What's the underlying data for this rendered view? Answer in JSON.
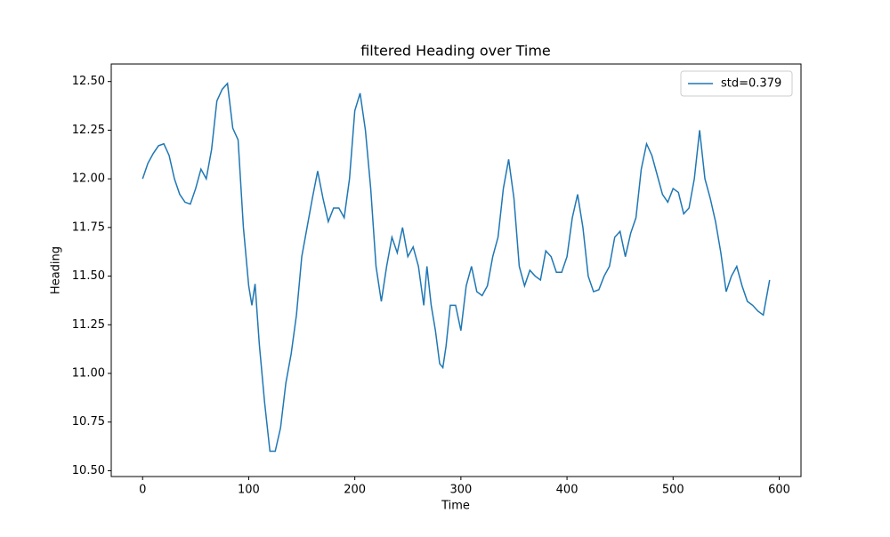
{
  "chart_data": {
    "type": "line",
    "title": "filtered Heading over Time",
    "x_label": "Time",
    "y_label": "Heading",
    "x": [
      0,
      5,
      10,
      15,
      20,
      25,
      30,
      35,
      40,
      45,
      50,
      55,
      60,
      65,
      70,
      75,
      80,
      85,
      90,
      95,
      100,
      103,
      106,
      110,
      115,
      120,
      125,
      130,
      135,
      140,
      145,
      150,
      155,
      160,
      165,
      170,
      175,
      180,
      185,
      190,
      195,
      200,
      205,
      210,
      215,
      220,
      225,
      230,
      235,
      240,
      245,
      250,
      255,
      260,
      265,
      268,
      272,
      276,
      280,
      283,
      286,
      290,
      295,
      300,
      305,
      310,
      315,
      320,
      325,
      330,
      335,
      340,
      345,
      350,
      355,
      360,
      365,
      370,
      375,
      380,
      385,
      390,
      395,
      400,
      405,
      410,
      415,
      420,
      425,
      430,
      435,
      440,
      445,
      450,
      455,
      460,
      465,
      470,
      475,
      480,
      485,
      490,
      495,
      500,
      505,
      510,
      515,
      520,
      525,
      530,
      535,
      540,
      545,
      550,
      555,
      560,
      565,
      570,
      575,
      580,
      585,
      591
    ],
    "series": [
      {
        "name": "std=0.379",
        "color": "#1f77b4",
        "values": [
          12.0,
          12.08,
          12.13,
          12.17,
          12.18,
          12.12,
          12.0,
          11.92,
          11.88,
          11.87,
          11.95,
          12.05,
          12.0,
          12.15,
          12.4,
          12.46,
          12.49,
          12.26,
          12.2,
          11.75,
          11.45,
          11.35,
          11.46,
          11.15,
          10.85,
          10.6,
          10.6,
          10.72,
          10.95,
          11.1,
          11.3,
          11.6,
          11.75,
          11.9,
          12.04,
          11.9,
          11.78,
          11.85,
          11.85,
          11.8,
          12.0,
          12.35,
          12.44,
          12.25,
          11.95,
          11.55,
          11.37,
          11.55,
          11.7,
          11.62,
          11.75,
          11.6,
          11.65,
          11.55,
          11.35,
          11.55,
          11.35,
          11.22,
          11.05,
          11.03,
          11.14,
          11.35,
          11.35,
          11.22,
          11.45,
          11.55,
          11.42,
          11.4,
          11.45,
          11.6,
          11.7,
          11.95,
          12.1,
          11.9,
          11.55,
          11.45,
          11.53,
          11.5,
          11.48,
          11.63,
          11.6,
          11.52,
          11.52,
          11.6,
          11.8,
          11.92,
          11.75,
          11.5,
          11.42,
          11.43,
          11.5,
          11.55,
          11.7,
          11.73,
          11.6,
          11.72,
          11.8,
          12.05,
          12.18,
          12.12,
          12.02,
          11.92,
          11.88,
          11.95,
          11.93,
          11.82,
          11.85,
          12.0,
          12.25,
          12.0,
          11.9,
          11.78,
          11.62,
          11.42,
          11.5,
          11.55,
          11.45,
          11.37,
          11.35,
          11.32,
          11.3,
          11.48
        ]
      }
    ],
    "xlim": [
      -29.55,
      620.55
    ],
    "ylim": [
      10.47,
      12.59
    ],
    "xticks": [
      0,
      100,
      200,
      300,
      400,
      500,
      600
    ],
    "yticks": [
      {
        "value": 10.5,
        "label": "10.50"
      },
      {
        "value": 10.75,
        "label": "10.75"
      },
      {
        "value": 11,
        "label": "11.00"
      },
      {
        "value": 11.25,
        "label": "11.25"
      },
      {
        "value": 11.5,
        "label": "11.50"
      },
      {
        "value": 11.75,
        "label": "11.75"
      },
      {
        "value": 12,
        "label": "12.00"
      },
      {
        "value": 12.25,
        "label": "12.25"
      },
      {
        "value": 12.5,
        "label": "12.50"
      }
    ],
    "legend": "upper right"
  }
}
